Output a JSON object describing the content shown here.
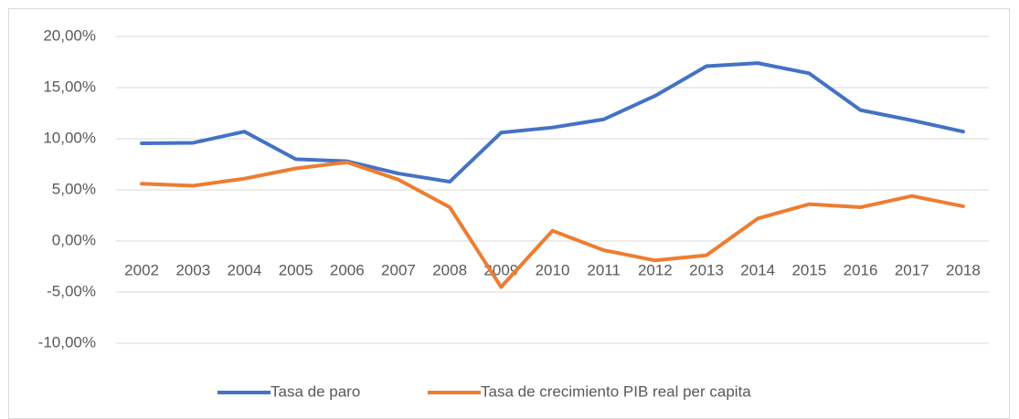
{
  "chart_data": {
    "type": "line",
    "categories": [
      "2002",
      "2003",
      "2004",
      "2005",
      "2006",
      "2007",
      "2008",
      "2009",
      "2010",
      "2011",
      "2012",
      "2013",
      "2014",
      "2015",
      "2016",
      "2017",
      "2018"
    ],
    "series": [
      {
        "name": "Tasa de paro",
        "color": "#4472c4",
        "values": [
          9.55,
          9.6,
          10.7,
          8.0,
          7.8,
          6.6,
          5.8,
          10.6,
          11.1,
          11.9,
          14.2,
          17.1,
          17.4,
          16.4,
          12.8,
          11.8,
          10.7
        ]
      },
      {
        "name": "Tasa de crecimiento PIB real per capita",
        "color": "#ed7d31",
        "values": [
          5.6,
          5.4,
          6.1,
          7.1,
          7.7,
          6.0,
          3.3,
          -4.5,
          1.0,
          -0.9,
          -1.9,
          -1.4,
          2.2,
          3.6,
          3.3,
          4.4,
          3.4
        ]
      }
    ],
    "ylim": [
      -10,
      20
    ],
    "yticks": [
      {
        "value": -10,
        "label": "-10,00%"
      },
      {
        "value": -5,
        "label": "-5,00%"
      },
      {
        "value": 0,
        "label": "0,00%"
      },
      {
        "value": 5,
        "label": "5,00%"
      },
      {
        "value": 10,
        "label": "10,00%"
      },
      {
        "value": 15,
        "label": "15,00%"
      },
      {
        "value": 20,
        "label": "20,00%"
      }
    ],
    "grid": true,
    "legend": "bottom"
  }
}
